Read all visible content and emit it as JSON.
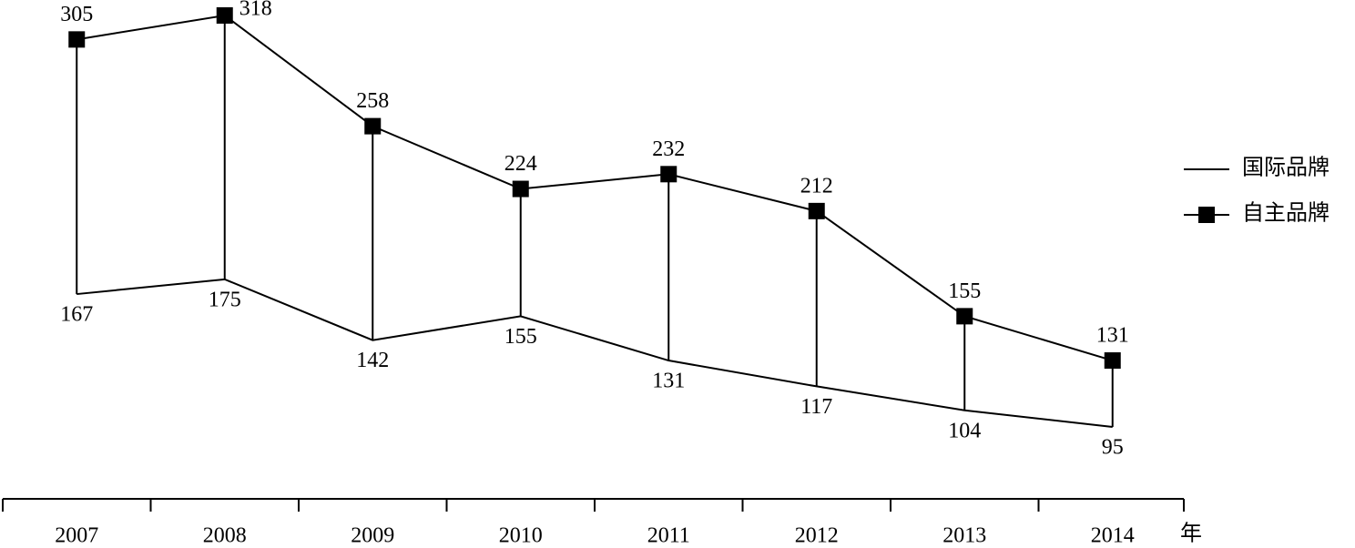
{
  "chart_data": {
    "type": "line",
    "x_label": "年",
    "categories": [
      "2007",
      "2008",
      "2009",
      "2010",
      "2011",
      "2012",
      "2013",
      "2014"
    ],
    "series": [
      {
        "name": "国际品牌",
        "marker": "diamond",
        "color": "#000000",
        "values": [
          167,
          175,
          142,
          155,
          131,
          117,
          104,
          95
        ]
      },
      {
        "name": "自主品牌",
        "marker": "square",
        "color": "#000000",
        "values": [
          305,
          318,
          258,
          224,
          232,
          212,
          155,
          131
        ]
      }
    ],
    "range_lines": true
  }
}
